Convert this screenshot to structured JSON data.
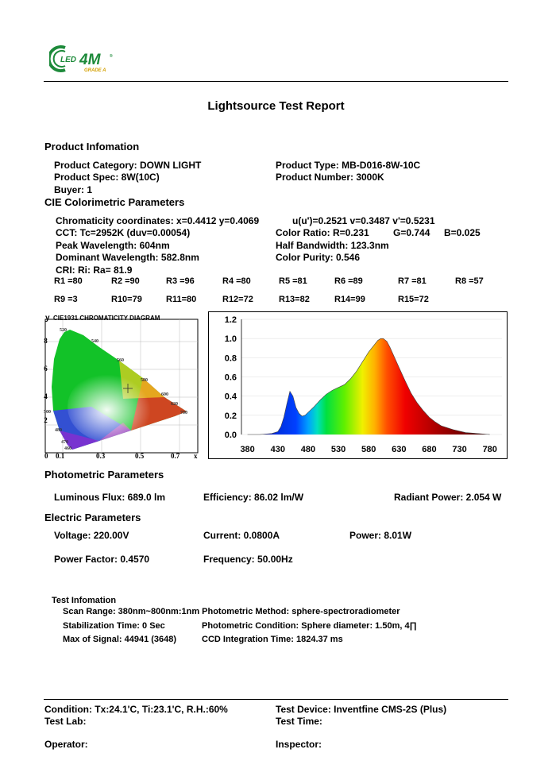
{
  "logo": {
    "text": "LED",
    "brand": "4M",
    "sub": "GRADE A",
    "registered": "®"
  },
  "title": "Lightsource Test Report",
  "product": {
    "heading": "Product Infomation",
    "category": "Product Category: DOWN LIGHT",
    "type": "Product Type: MB-D016-8W-10C",
    "spec": "Product Spec: 8W(10C)",
    "number": "Product Number: 3000K",
    "buyer": "Buyer: 1"
  },
  "cie": {
    "heading": "CIE Colorimetric Parameters",
    "chromaticity": "Chromaticity coordinates: x=0.4412 y=0.4069",
    "uv": "u(u')=0.2521 v=0.3487 v'=0.5231",
    "cct": "CCT: Tc=2952K (duv=0.00054)",
    "color_ratio": "Color Ratio: R=0.231",
    "g": "G=0.744",
    "b": "B=0.025",
    "peak": "Peak Wavelength: 604nm",
    "half_bw": "Half Bandwidth: 123.3nm",
    "dominant": "Dominant Wavelength: 582.8nm",
    "purity": "Color Purity: 0.546",
    "cri": "CRI: Ri: Ra= 81.9",
    "r_row1": [
      "R1 =80",
      "R2 =90",
      "R3 =96",
      "R4 =80",
      "R5 =81",
      "R6 =89",
      "R7 =81",
      "R8 =57"
    ],
    "r_row2": [
      "R9 =3",
      "R10=79",
      "R11=80",
      "R12=72",
      "R13=82",
      "R14=99",
      "R15=72"
    ]
  },
  "diagram": {
    "y_label": "y",
    "title": "CIE1931 CHROMATICITY DIAGRAM",
    "y_ticks": [
      ".8",
      ".6",
      ".4",
      ".2"
    ],
    "x_ticks": [
      "0",
      "0.1",
      "0.3",
      "0.5",
      "0.7",
      "x"
    ],
    "locus_labels": [
      "520",
      "540",
      "560",
      "580",
      "600",
      "620",
      "700",
      "500",
      "480",
      "470",
      "460"
    ],
    "point": {
      "x": 0.4412,
      "y": 0.4069
    }
  },
  "chart_data": {
    "type": "line",
    "title": "",
    "xlabel": "",
    "ylabel": "",
    "x_ticks": [
      380,
      430,
      480,
      530,
      580,
      630,
      680,
      730,
      780
    ],
    "y_ticks": [
      "1.2",
      "1.0",
      "0.8",
      "0.6",
      "0.4",
      "0.2",
      "0.0"
    ],
    "xlim": [
      370,
      800
    ],
    "ylim": [
      0,
      1.2
    ],
    "series": [
      {
        "x": [
          380,
          400,
          420,
          430,
          435,
          440,
          445,
          450,
          455,
          460,
          465,
          470,
          475,
          480,
          490,
          500,
          510,
          520,
          530,
          540,
          550,
          560,
          570,
          580,
          590,
          595,
          600,
          604,
          610,
          615,
          620,
          630,
          640,
          650,
          660,
          670,
          680,
          690,
          700,
          720,
          740,
          760,
          780
        ],
        "values": [
          0.0,
          0.0,
          0.01,
          0.03,
          0.08,
          0.18,
          0.32,
          0.45,
          0.4,
          0.28,
          0.22,
          0.19,
          0.2,
          0.23,
          0.29,
          0.36,
          0.42,
          0.46,
          0.49,
          0.52,
          0.58,
          0.66,
          0.76,
          0.86,
          0.94,
          0.98,
          1.0,
          1.0,
          0.97,
          0.91,
          0.84,
          0.7,
          0.56,
          0.43,
          0.33,
          0.25,
          0.18,
          0.13,
          0.09,
          0.05,
          0.02,
          0.01,
          0.0
        ]
      }
    ]
  },
  "photometric": {
    "heading": "Photometric Parameters",
    "flux": "Luminous Flux: 689.0 lm",
    "efficiency": "Efficiency: 86.02 lm/W",
    "radiant": "Radiant Power: 2.054 W"
  },
  "electric": {
    "heading": "Electric Parameters",
    "voltage": "Voltage: 220.00V",
    "current": "Current: 0.0800A",
    "power": "Power: 8.01W",
    "pf": "Power Factor: 0.4570",
    "freq": "Frequency: 50.00Hz"
  },
  "test": {
    "heading": "Test Infomation",
    "scan": "Scan Range: 380nm~800nm:1nm Photometric Method: sphere-spectroradiometer",
    "stab": "Stabilization Time: 0 Sec",
    "cond": "Photometric Condition: Sphere diameter: 1.50m, 4∏",
    "maxsig": "Max of Signal: 44941 (3648)",
    "ccd": "CCD Integration Time: 1824.37 ms"
  },
  "footer": {
    "condition": "Condition: Tx:24.1'C, Ti:23.1'C, R.H.:60%",
    "device": "Test Device: Inventfine CMS-2S (Plus)",
    "lab": "Test Lab:",
    "time": "Test Time:",
    "operator": "Operator:",
    "inspector": "Inspector:"
  }
}
